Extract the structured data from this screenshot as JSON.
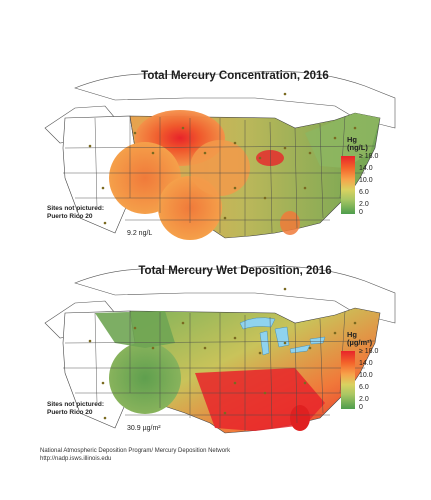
{
  "map1": {
    "title": "Total Mercury Concentration, 2016",
    "legend_title_line1": "Hg",
    "legend_title_line2": "(ng/L)",
    "legend_ticks": [
      "≥ 18.0",
      "14.0",
      "10.0",
      "6.0",
      "2.0",
      "0"
    ],
    "note_line1": "Sites not pictured:",
    "note_line2": "Puerto Rico 20",
    "value_label": "9.2 ng/L"
  },
  "map2": {
    "title": "Total Mercury Wet Deposition, 2016",
    "legend_title_line1": "Hg",
    "legend_title_line2": "(µg/m²)",
    "legend_ticks": [
      "≥ 18.0",
      "14.0",
      "10.0",
      "6.0",
      "2.0",
      "0"
    ],
    "note_line1": "Sites not pictured:",
    "note_line2": "Puerto Rico 20",
    "value_label": "30.9 µg/m²"
  },
  "footer": {
    "line1": "National Atmospheric Deposition Program/ Mercury Deposition Network",
    "line2": "http://nadp.isws.illinois.edu"
  },
  "colors": {
    "high": "#e8242a",
    "mid": "#f7a24a",
    "low": "#4e9d4d",
    "lakes": "#8fd3ef"
  }
}
